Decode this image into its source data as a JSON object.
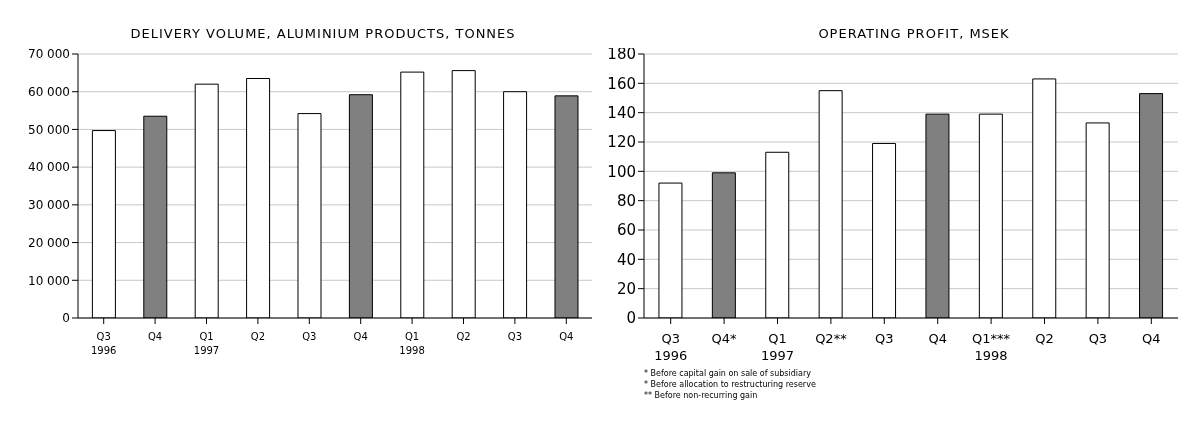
{
  "chart_data": [
    {
      "type": "bar",
      "title": "DELIVERY VOLUME, ALUMINIUM PRODUCTS, TONNES",
      "categories": [
        "Q3\n1996",
        "Q4",
        "Q1\n1997",
        "Q2",
        "Q3",
        "Q4",
        "Q1\n1998",
        "Q2",
        "Q3",
        "Q4"
      ],
      "values": [
        49700,
        53500,
        62000,
        63500,
        54200,
        59200,
        65200,
        65600,
        60000,
        58900
      ],
      "colors": [
        "#ffffff",
        "#808080",
        "#ffffff",
        "#ffffff",
        "#ffffff",
        "#808080",
        "#ffffff",
        "#ffffff",
        "#ffffff",
        "#808080"
      ],
      "ylim": [
        0,
        70000
      ],
      "yticks": [
        0,
        {
          "value": 10000,
          "label": "10 000"
        },
        {
          "value": 20000,
          "label": "20 000"
        },
        {
          "value": 30000,
          "label": "30 000"
        },
        {
          "value": 40000,
          "label": "40 000"
        },
        {
          "value": 50000,
          "label": "50 000"
        },
        {
          "value": 60000,
          "label": "60 000"
        },
        {
          "value": 70000,
          "label": "70 000"
        }
      ],
      "grid": "y",
      "legend": false
    },
    {
      "type": "bar",
      "title": "OPERATING PROFIT, MSEK",
      "categories": [
        "Q3\n1996",
        "Q4*",
        "Q1\n1997",
        "Q2**",
        "Q3",
        "Q4",
        "Q1***\n1998",
        "Q2",
        "Q3",
        "Q4"
      ],
      "values": [
        92,
        99,
        113,
        155,
        119,
        139,
        139,
        163,
        133,
        153
      ],
      "colors": [
        "#ffffff",
        "#808080",
        "#ffffff",
        "#ffffff",
        "#ffffff",
        "#808080",
        "#ffffff",
        "#ffffff",
        "#ffffff",
        "#808080"
      ],
      "ylim": [
        0,
        180
      ],
      "yticks": [
        0,
        20,
        40,
        60,
        80,
        100,
        120,
        140,
        160,
        180
      ],
      "grid": "y",
      "legend": false,
      "annotations": [
        "* Before capital gain on sale of subsidiary",
        "* Before allocation to restructuring reserve",
        "** Before non-recurring gain"
      ]
    }
  ]
}
